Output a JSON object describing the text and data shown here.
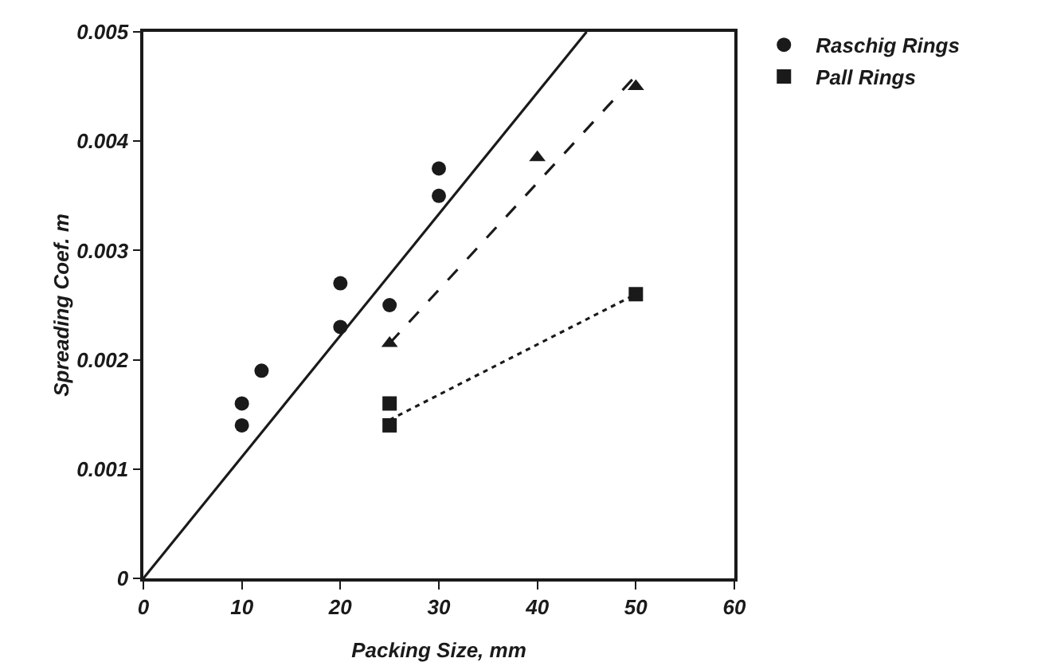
{
  "chart_data": {
    "type": "scatter",
    "xlabel": "Packing Size, mm",
    "ylabel": "Spreading Coef. m",
    "xlim": [
      0,
      60
    ],
    "xticks": [
      0,
      10,
      20,
      30,
      40,
      50,
      60
    ],
    "ylim": [
      0,
      0.005
    ],
    "yticks": [
      {
        "value": 0,
        "label": "0"
      },
      0.001,
      0.002,
      0.003,
      0.004,
      0.005
    ],
    "grid": false,
    "legend": "right",
    "series": [
      {
        "name": "Raschig Rings",
        "color": "#1a1a1a",
        "marker": "circle",
        "x": [
          10,
          10,
          12,
          20,
          20,
          25,
          30,
          30
        ],
        "values": [
          0.0016,
          0.0014,
          0.0019,
          0.0027,
          0.0023,
          0.0025,
          0.00375,
          0.0035
        ]
      },
      {
        "name": "Pall Rings",
        "color": "#1a1a1a",
        "marker": "square",
        "x": [
          25,
          25,
          50
        ],
        "values": [
          0.0016,
          0.0014,
          0.0026
        ]
      },
      {
        "color": "#1a1a1a",
        "marker": "triangle",
        "x": [
          25,
          40,
          50
        ],
        "values": [
          0.00215,
          0.00385,
          0.0045
        ]
      },
      {
        "type": "line",
        "color": "#1a1a1a",
        "line_style": "solid",
        "marker": "none",
        "x": [
          0,
          45
        ],
        "values": [
          0,
          0.005
        ]
      },
      {
        "type": "line",
        "color": "#1a1a1a",
        "line_style": "dashed",
        "marker": "none",
        "x": [
          25,
          50
        ],
        "values": [
          0.00215,
          0.0046
        ]
      },
      {
        "type": "line",
        "color": "#1a1a1a",
        "line_style": "dotted",
        "marker": "none",
        "x": [
          25,
          50
        ],
        "values": [
          0.00145,
          0.0026
        ]
      }
    ]
  }
}
